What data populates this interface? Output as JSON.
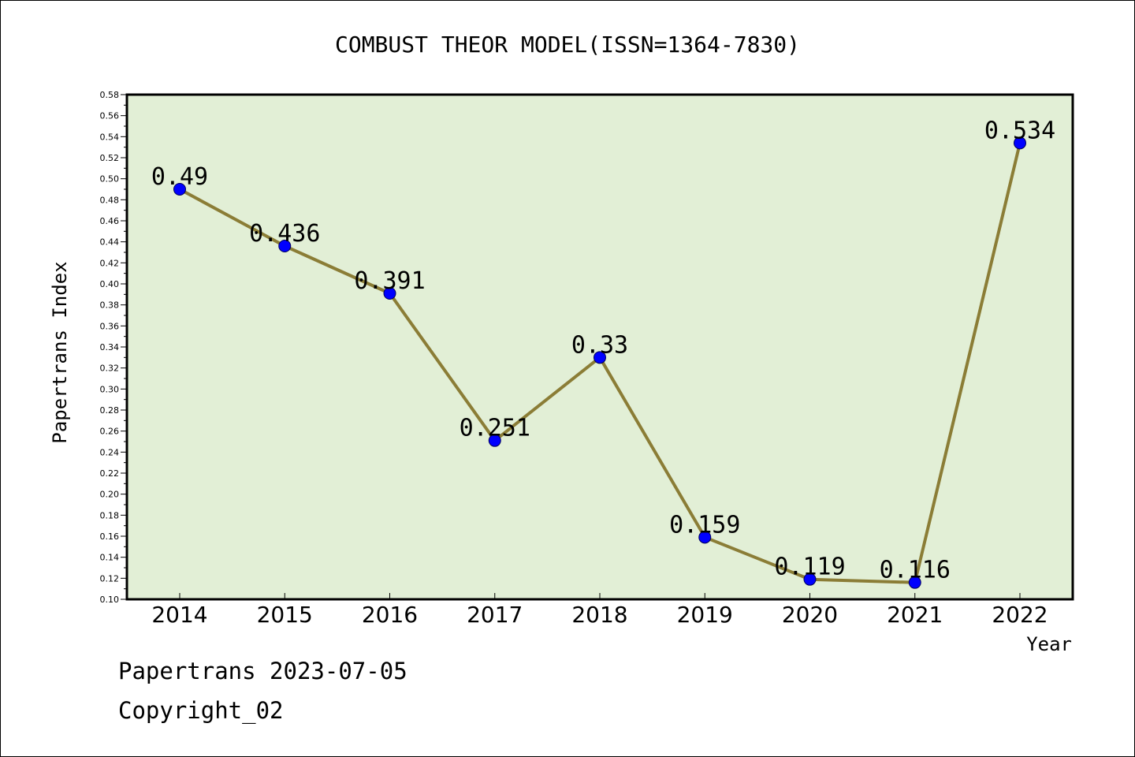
{
  "chart_data": {
    "type": "line",
    "title": "COMBUST THEOR MODEL(ISSN=1364-7830)",
    "xlabel": "Year",
    "ylabel": "Papertrans Index",
    "categories": [
      "2014",
      "2015",
      "2016",
      "2017",
      "2018",
      "2019",
      "2020",
      "2021",
      "2022"
    ],
    "values": [
      0.49,
      0.436,
      0.391,
      0.251,
      0.33,
      0.159,
      0.119,
      0.116,
      0.534
    ],
    "data_labels": [
      "0.49",
      "0.436",
      "0.391",
      "0.251",
      "0.33",
      "0.159",
      "0.119",
      "0.116",
      "0.534"
    ],
    "ylim": [
      0.1,
      0.58
    ],
    "yticks": [
      "0.10",
      "0.12",
      "0.14",
      "0.16",
      "0.18",
      "0.20",
      "0.22",
      "0.24",
      "0.26",
      "0.28",
      "0.30",
      "0.32",
      "0.34",
      "0.36",
      "0.38",
      "0.40",
      "0.42",
      "0.44",
      "0.46",
      "0.48",
      "0.50",
      "0.52",
      "0.54",
      "0.56",
      "0.58"
    ],
    "grid": false,
    "legend": "none"
  },
  "footer": {
    "line1": "Papertrans 2023-07-05",
    "line2": "Copyright_02"
  },
  "colors": {
    "plot_background": "#e2efd6",
    "line": "#8b7d36",
    "marker": "#0000ff"
  }
}
